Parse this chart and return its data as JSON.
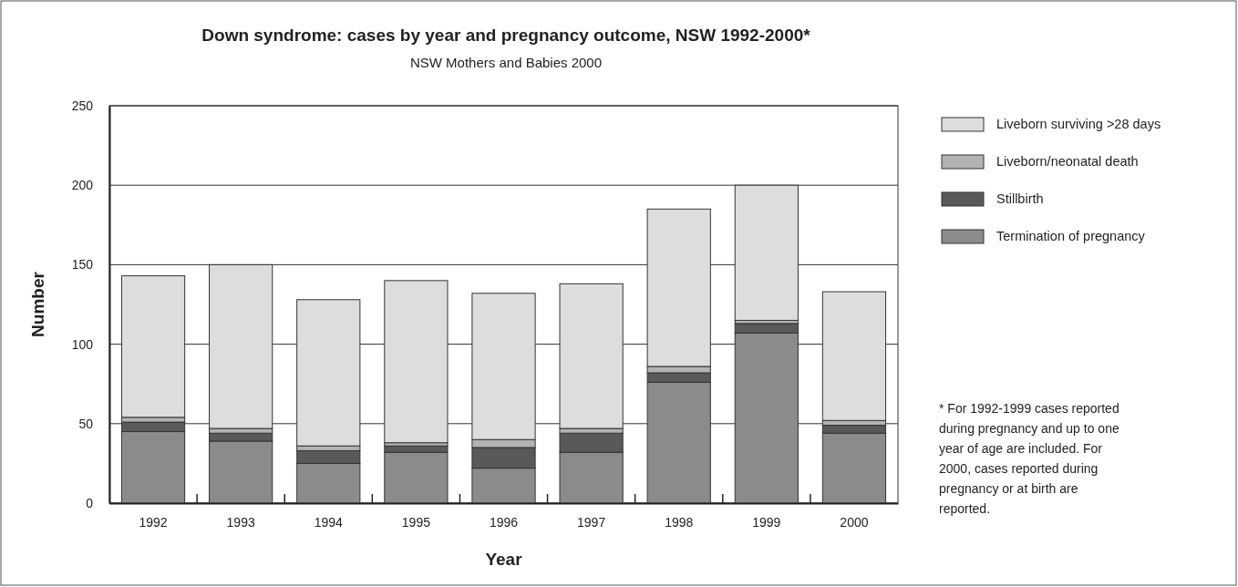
{
  "chart_data": {
    "type": "bar",
    "title": "Down syndrome: cases by year and pregnancy outcome, NSW 1992-2000*",
    "subtitle": "NSW Mothers and Babies 2000",
    "xlabel": "Year",
    "ylabel": "Number",
    "categories": [
      "1992",
      "1993",
      "1994",
      "1995",
      "1996",
      "1997",
      "1998",
      "1999",
      "2000"
    ],
    "stacked": true,
    "series": [
      {
        "name": "Termination of pregnancy",
        "color": "#8a8b8d",
        "values": [
          45,
          39,
          25,
          32,
          22,
          32,
          76,
          107,
          44
        ]
      },
      {
        "name": "Stillbirth",
        "color": "#58595b",
        "values": [
          6,
          5,
          8,
          4,
          13,
          12,
          6,
          6,
          5
        ]
      },
      {
        "name": "Liveborn/neonatal death",
        "color": "#b2b3b5",
        "values": [
          3,
          3,
          3,
          2,
          5,
          3,
          4,
          2,
          3
        ]
      },
      {
        "name": "Liveborn surviving >28 days",
        "color": "#dcdddf",
        "values": [
          89,
          103,
          92,
          102,
          92,
          91,
          99,
          85,
          81
        ]
      }
    ],
    "ylim": [
      0,
      250
    ],
    "yticks": [
      0,
      50,
      100,
      150,
      200,
      250
    ],
    "grid": "y",
    "legend": "top right",
    "annotations": [
      "* For 1992-1999 cases reported during pregnancy and up to one year of age are included. For 2000, cases reported during pregnancy or at birth are reported."
    ]
  }
}
